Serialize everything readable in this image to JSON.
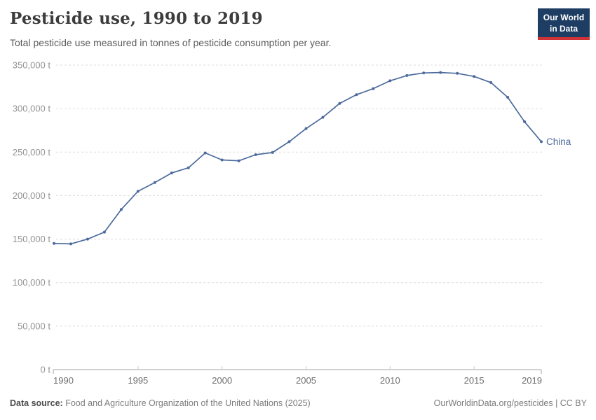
{
  "header": {
    "title": "Pesticide use, 1990 to 2019",
    "subtitle": "Total pesticide use measured in tonnes of pesticide consumption per year.",
    "logo": {
      "line1": "Our World",
      "line2": "in Data",
      "bg_color": "#1d3d63",
      "accent_color": "#cf3337"
    }
  },
  "chart_data": {
    "type": "line",
    "title": "Pesticide use, 1990 to 2019",
    "xlabel": "",
    "ylabel": "",
    "unit_suffix": " t",
    "xlim": [
      1990,
      2019
    ],
    "ylim": [
      0,
      350000
    ],
    "grid": "horizontal-dashed",
    "legend_position": "end-of-line-label",
    "yticks": [
      0,
      50000,
      100000,
      150000,
      200000,
      250000,
      300000,
      350000
    ],
    "xticks": [
      1990,
      1995,
      2000,
      2005,
      2010,
      2015,
      2019
    ],
    "series": [
      {
        "name": "China",
        "color": "#4C6A9C",
        "x": [
          1990,
          1991,
          1992,
          1993,
          1994,
          1995,
          1996,
          1997,
          1998,
          1999,
          2000,
          2001,
          2002,
          2003,
          2004,
          2005,
          2006,
          2007,
          2008,
          2009,
          2010,
          2011,
          2012,
          2013,
          2014,
          2015,
          2016,
          2017,
          2018,
          2019
        ],
        "y": [
          145000,
          144500,
          150000,
          158000,
          184000,
          205000,
          215000,
          226000,
          232000,
          249000,
          241000,
          240000,
          247000,
          249500,
          262000,
          277000,
          290000,
          306000,
          316000,
          323000,
          332000,
          338000,
          341000,
          341500,
          340500,
          337000,
          330000,
          313000,
          285000,
          262000
        ]
      }
    ],
    "style": {
      "gridline_color": "#dcdcdc",
      "axis_color": "#a3a3a3",
      "ytick_label_color": "#949494",
      "xtick_label_color": "#6e6e6e"
    }
  },
  "footer": {
    "source_label": "Data source:",
    "source_text": " Food and Agriculture Organization of the United Nations (2025)",
    "credit": "OurWorldinData.org/pesticides | CC BY"
  }
}
